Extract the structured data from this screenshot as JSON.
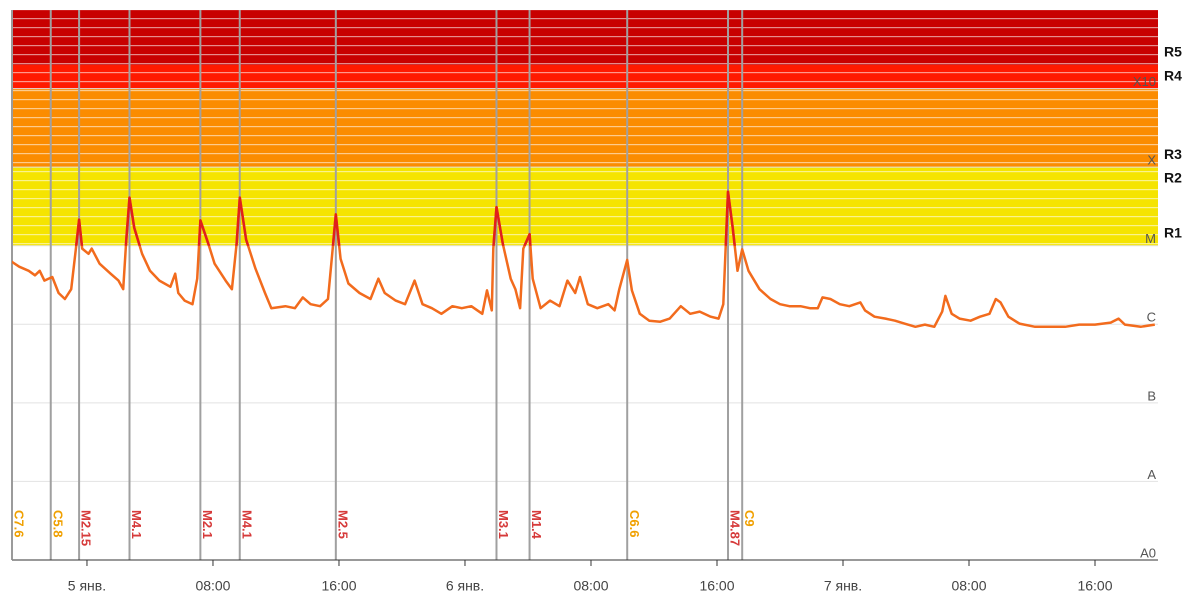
{
  "chart_data": {
    "type": "line",
    "log_scale": true,
    "xlim": [
      -4.76,
      68
    ],
    "xticks": [
      {
        "value": 0,
        "label": "5 янв."
      },
      {
        "value": 8,
        "label": "08:00"
      },
      {
        "value": 16,
        "label": "16:00"
      },
      {
        "value": 24,
        "label": "6 янв."
      },
      {
        "value": 32,
        "label": "08:00"
      },
      {
        "value": 40,
        "label": "16:00"
      },
      {
        "value": 48,
        "label": "7 янв."
      },
      {
        "value": 56,
        "label": "08:00"
      },
      {
        "value": 64,
        "label": "16:00"
      }
    ],
    "ylim": [
      1e-09,
      0.01
    ],
    "yticks": [
      {
        "value": 1e-09,
        "label": "A0"
      },
      {
        "value": 1e-08,
        "label": "A"
      },
      {
        "value": 1e-07,
        "label": "B"
      },
      {
        "value": 1e-06,
        "label": "C"
      },
      {
        "value": 1e-05,
        "label": "M"
      },
      {
        "value": 0.0001,
        "label": "X"
      },
      {
        "value": 0.001,
        "label": "X10"
      }
    ],
    "grid": true,
    "bands": [
      {
        "from": 1e-05,
        "to": 0.0001,
        "color": "#f5e400"
      },
      {
        "from": 0.0001,
        "to": 0.001,
        "color": "#fb8c00"
      },
      {
        "from": 0.001,
        "to": 0.002,
        "color": "#ff1a00"
      },
      {
        "from": 0.002,
        "to": 0.01,
        "color": "#c80000"
      }
    ],
    "r_levels": [
      {
        "label": "R1",
        "value": 1e-05
      },
      {
        "label": "R2",
        "value": 5e-05
      },
      {
        "label": "R3",
        "value": 0.0001
      },
      {
        "label": "R4",
        "value": 0.001
      },
      {
        "label": "R5",
        "value": 0.002
      }
    ],
    "events": [
      {
        "label": "C7.6",
        "x": -4.76,
        "color": "#f0a000"
      },
      {
        "label": "C5.8",
        "x": -2.3,
        "color": "#f0a000"
      },
      {
        "label": "M2.15",
        "x": -0.5,
        "color": "#d63a3a"
      },
      {
        "label": "M4.1",
        "x": 2.7,
        "color": "#d63a3a"
      },
      {
        "label": "M2.1",
        "x": 7.2,
        "color": "#d63a3a"
      },
      {
        "label": "M4.1",
        "x": 9.7,
        "color": "#d63a3a"
      },
      {
        "label": "M2.5",
        "x": 15.8,
        "color": "#d63a3a"
      },
      {
        "label": "M3.1",
        "x": 26.0,
        "color": "#d63a3a"
      },
      {
        "label": "M1.4",
        "x": 28.1,
        "color": "#d63a3a"
      },
      {
        "label": "C6.6",
        "x": 34.3,
        "color": "#f0a000"
      },
      {
        "label": "M4.87",
        "x": 40.7,
        "color": "#d63a3a"
      },
      {
        "label": "C9",
        "x": 41.6,
        "color": "#f0a000"
      }
    ],
    "series": [
      {
        "color": "#f26b1d",
        "highlight_color": "#e0201c",
        "x": [
          -4.8,
          -4.3,
          -3.7,
          -3.3,
          -3.0,
          -2.7,
          -2.2,
          -1.8,
          -1.4,
          -1.0,
          -0.7,
          -0.5,
          -0.3,
          0.1,
          0.3,
          0.8,
          1.5,
          2.0,
          2.3,
          2.5,
          2.7,
          3.0,
          3.5,
          4.0,
          4.6,
          5.3,
          5.6,
          5.8,
          6.2,
          6.7,
          7.0,
          7.2,
          7.7,
          8.1,
          8.8,
          9.2,
          9.5,
          9.7,
          10.1,
          10.7,
          11.3,
          11.7,
          12.6,
          13.2,
          13.7,
          14.2,
          14.8,
          15.3,
          15.6,
          15.8,
          16.1,
          16.6,
          17.3,
          18.0,
          18.5,
          18.9,
          19.6,
          20.2,
          20.8,
          21.3,
          21.9,
          22.5,
          23.2,
          23.8,
          24.4,
          25.1,
          25.4,
          25.7,
          25.8,
          26.0,
          26.4,
          26.9,
          27.2,
          27.5,
          27.7,
          28.1,
          28.3,
          28.8,
          29.4,
          30.0,
          30.5,
          31.0,
          31.3,
          31.8,
          32.4,
          33.1,
          33.5,
          33.8,
          34.3,
          34.6,
          35.1,
          35.7,
          36.4,
          37.0,
          37.7,
          38.3,
          38.9,
          39.6,
          40.1,
          40.4,
          40.7,
          41.0,
          41.3,
          41.6,
          42.0,
          42.7,
          43.4,
          44.0,
          44.6,
          45.3,
          45.9,
          46.4,
          46.7,
          47.2,
          47.8,
          48.4,
          49.1,
          49.4,
          50.0,
          50.7,
          51.3,
          51.9,
          52.6,
          53.2,
          53.8,
          54.3,
          54.5,
          54.9,
          55.4,
          56.1,
          56.7,
          57.3,
          57.7,
          58.0,
          58.5,
          59.2,
          60.2,
          61.1,
          62.1,
          63.0,
          64.0,
          65.0,
          65.5,
          65.9,
          66.9,
          67.8
        ],
        "values": [
          6.3e-06,
          5.4e-06,
          4.8e-06,
          4.2e-06,
          4.8e-06,
          3.6e-06,
          4e-06,
          2.5e-06,
          2.1e-06,
          2.8e-06,
          9.2e-06,
          2.15e-05,
          9.2e-06,
          7.9e-06,
          9.2e-06,
          5.9e-06,
          4.4e-06,
          3.6e-06,
          2.8e-06,
          1.2e-05,
          4.1e-05,
          1.7e-05,
          7.9e-06,
          4.8e-06,
          3.6e-06,
          3e-06,
          4.4e-06,
          2.5e-06,
          2e-06,
          1.8e-06,
          3.8e-06,
          2.1e-05,
          1.06e-05,
          5.9e-06,
          3.6e-06,
          2.8e-06,
          1.06e-05,
          4.1e-05,
          1.2e-05,
          5.1e-06,
          2.5e-06,
          1.6e-06,
          1.7e-06,
          1.6e-06,
          2.2e-06,
          1.8e-06,
          1.7e-06,
          2.1e-06,
          9.2e-06,
          2.5e-05,
          6.8e-06,
          3.3e-06,
          2.5e-06,
          2.1e-06,
          3.8e-06,
          2.5e-06,
          2e-06,
          1.8e-06,
          3.6e-06,
          1.8e-06,
          1.6e-06,
          1.36e-06,
          1.7e-06,
          1.6e-06,
          1.7e-06,
          1.36e-06,
          2.7e-06,
          1.5e-06,
          9.2e-06,
          3.1e-05,
          1.06e-05,
          3.8e-06,
          2.8e-06,
          1.6e-06,
          9.2e-06,
          1.4e-05,
          3.8e-06,
          1.6e-06,
          2e-06,
          1.7e-06,
          3.6e-06,
          2.5e-06,
          4e-06,
          1.8e-06,
          1.6e-06,
          1.8e-06,
          1.5e-06,
          2.8e-06,
          6.6e-06,
          2.7e-06,
          1.36e-06,
          1.11e-06,
          1.08e-06,
          1.18e-06,
          1.7e-06,
          1.36e-06,
          1.45e-06,
          1.25e-06,
          1.18e-06,
          1.8e-06,
          4.87e-05,
          1.7e-05,
          4.8e-06,
          9e-06,
          4.8e-06,
          2.8e-06,
          2.1e-06,
          1.8e-06,
          1.7e-06,
          1.7e-06,
          1.6e-06,
          1.6e-06,
          2.2e-06,
          2.1e-06,
          1.8e-06,
          1.7e-06,
          1.9e-06,
          1.5e-06,
          1.25e-06,
          1.18e-06,
          1.11e-06,
          1.02e-06,
          9.3e-07,
          9.9e-07,
          9.3e-07,
          1.45e-06,
          2.3e-06,
          1.36e-06,
          1.18e-06,
          1.11e-06,
          1.25e-06,
          1.36e-06,
          2.1e-06,
          1.9e-06,
          1.25e-06,
          1.02e-06,
          9.3e-07,
          9.3e-07,
          9.3e-07,
          9.9e-07,
          9.9e-07,
          1.05e-06,
          1.18e-06,
          9.9e-07,
          9.3e-07,
          9.9e-07
        ]
      }
    ]
  }
}
